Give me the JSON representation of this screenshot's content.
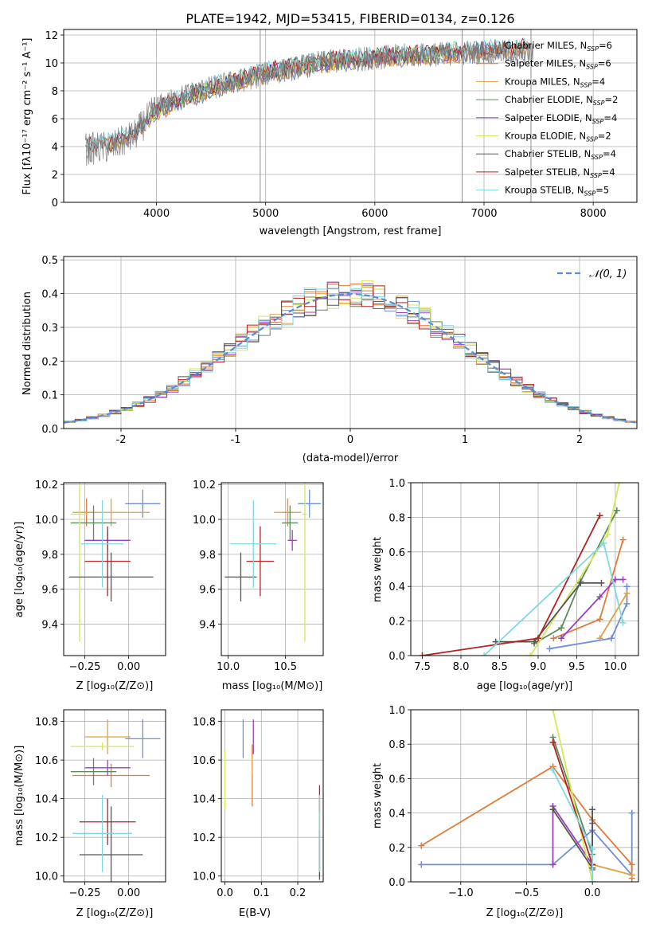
{
  "figure": {
    "title": "PLATE=1942, MJD=53415, FIBERID=0134, z=0.126",
    "series_names": [
      "Chabrier MILES, N_SSP=6",
      "Salpeter MILES, N_SSP=6",
      "Kroupa MILES, N_SSP=4",
      "Chabrier ELODIE, N_SSP=2",
      "Salpeter ELODIE, N_SSP=4",
      "Kroupa ELODIE, N_SSP=2",
      "Chabrier STELIB, N_SSP=4",
      "Salpeter STELIB, N_SSP=4",
      "Kroupa STELIB, N_SSP=5"
    ],
    "series_colors": [
      "#6f8fd8",
      "#e07b39",
      "#e0a040",
      "#5c8a5c",
      "#9b3fbf",
      "#d4e85a",
      "#555555",
      "#b22222",
      "#7fd8e0"
    ]
  },
  "chart_data": [
    {
      "id": "spectrum",
      "type": "line",
      "title": "PLATE=1942, MJD=53415, FIBERID=0134, z=0.126",
      "xlabel": "wavelength [Angstrom, rest frame]",
      "ylabel": "Flux [fλ10⁻¹⁷ erg cm⁻² s⁻¹ A⁻¹]",
      "xlim": [
        3150,
        8400
      ],
      "ylim": [
        0,
        12.4
      ],
      "xticks": [
        4000,
        5000,
        6000,
        7000,
        8000
      ],
      "yticks": [
        0,
        2,
        4,
        6,
        8,
        10,
        12
      ],
      "grid": true,
      "legend_position": "right",
      "legend": [
        {
          "label": "Chabrier MILES, N",
          "sub": "SSP",
          "val": "=6",
          "color": "#6f8fd8"
        },
        {
          "label": "Salpeter MILES, N",
          "sub": "SSP",
          "val": "=6",
          "color": "#e07b39"
        },
        {
          "label": "Kroupa MILES, N",
          "sub": "SSP",
          "val": "=4",
          "color": "#e0a040"
        },
        {
          "label": "Chabrier ELODIE, N",
          "sub": "SSP",
          "val": "=2",
          "color": "#5c8a5c"
        },
        {
          "label": "Salpeter ELODIE, N",
          "sub": "SSP",
          "val": "=4",
          "color": "#9b3fbf"
        },
        {
          "label": "Kroupa ELODIE, N",
          "sub": "SSP",
          "val": "=2",
          "color": "#d4e85a"
        },
        {
          "label": "Chabrier STELIB, N",
          "sub": "SSP",
          "val": "=4",
          "color": "#555555"
        },
        {
          "label": "Salpeter STELIB, N",
          "sub": "SSP",
          "val": "=4",
          "color": "#b22222"
        },
        {
          "label": "Kroupa STELIB, N",
          "sub": "SSP",
          "val": "=5",
          "color": "#7fd8e0"
        }
      ],
      "observed_continuum": {
        "x": [
          3350,
          3600,
          3800,
          4000,
          4300,
          4600,
          5000,
          5500,
          6000,
          6500,
          7000,
          7500
        ],
        "y": [
          3.8,
          4.0,
          4.8,
          6.8,
          7.8,
          8.4,
          9.2,
          10.0,
          10.4,
          10.6,
          10.8,
          10.7
        ]
      },
      "model_continuum": {
        "x": [
          3350,
          3600,
          3800,
          4000,
          4300,
          4600,
          5000,
          5500,
          6000,
          6500,
          7000,
          7400
        ],
        "y": [
          3.9,
          4.2,
          5.0,
          6.6,
          7.6,
          8.4,
          9.3,
          10.0,
          10.4,
          10.6,
          10.9,
          11.0
        ]
      },
      "model_ranges": [
        {
          "series": "Chabrier MILES",
          "xmin": 3540,
          "xmax": 7400
        },
        {
          "series": "Salpeter MILES",
          "xmin": 3540,
          "xmax": 7420
        },
        {
          "series": "Kroupa MILES",
          "xmin": 3540,
          "xmax": 7400
        },
        {
          "series": "Chabrier ELODIE",
          "xmin": 3900,
          "xmax": 6800
        },
        {
          "series": "Salpeter ELODIE",
          "xmin": 3900,
          "xmax": 6800
        },
        {
          "series": "Kroupa ELODIE",
          "xmin": 3900,
          "xmax": 6800
        },
        {
          "series": "Chabrier STELIB",
          "xmin": 3350,
          "xmax": 7400
        },
        {
          "series": "Salpeter STELIB",
          "xmin": 3350,
          "xmax": 7420
        },
        {
          "series": "Kroupa STELIB",
          "xmin": 3350,
          "xmax": 7400
        }
      ],
      "vertical_dips": [
        4950,
        6800,
        7430
      ]
    },
    {
      "id": "residuals",
      "type": "histogram",
      "xlabel": "(data-model)/error",
      "ylabel": "Normed distribution",
      "xlim": [
        -2.5,
        2.5
      ],
      "ylim": [
        0,
        0.51
      ],
      "xticks": [
        -2,
        -1,
        0,
        1,
        2
      ],
      "yticks": [
        0.0,
        0.1,
        0.2,
        0.3,
        0.4,
        0.5
      ],
      "grid": true,
      "legend_position": "top-right",
      "reference": {
        "label": "𝒩(0, 1)",
        "mean": 0,
        "sigma": 1,
        "color": "#5b8ad6"
      },
      "bin_width": 0.1
    },
    {
      "id": "age_vs_Z",
      "type": "errorbar",
      "xlabel": "Z [log₁₀(Z/Z⊙)]",
      "ylabel": "age  [log₁₀(age/yr)]",
      "xlim": [
        -0.37,
        0.21
      ],
      "ylim": [
        9.22,
        10.21
      ],
      "xticks": [
        -0.25,
        0.0
      ],
      "xticklabels": [
        "−0.25",
        "0.00"
      ],
      "yticks": [
        9.4,
        9.6,
        9.8,
        10.0,
        10.2
      ],
      "grid": true,
      "points": [
        {
          "series": 0,
          "x": 0.08,
          "y": 10.09,
          "xerr": 0.1,
          "yerr": 0.08
        },
        {
          "series": 1,
          "x": -0.24,
          "y": 10.04,
          "xerr": 0.05,
          "yerr": 0.08
        },
        {
          "series": 2,
          "x": -0.1,
          "y": 10.04,
          "xerr": 0.22,
          "yerr": 0.08
        },
        {
          "series": 3,
          "x": -0.2,
          "y": 9.98,
          "xerr": 0.13,
          "yerr": 0.1
        },
        {
          "series": 4,
          "x": -0.12,
          "y": 9.88,
          "xerr": 0.13,
          "yerr": 0.06
        },
        {
          "series": 5,
          "x": -0.28,
          "y": 10.03,
          "xerr": 0.05,
          "yerr": 0.73
        },
        {
          "series": 6,
          "x": -0.1,
          "y": 9.67,
          "xerr": 0.24,
          "yerr": 0.14
        },
        {
          "series": 7,
          "x": -0.12,
          "y": 9.76,
          "xerr": 0.13,
          "yerr": 0.2
        },
        {
          "series": 8,
          "x": -0.15,
          "y": 9.86,
          "xerr": 0.12,
          "yerr": 0.25
        }
      ]
    },
    {
      "id": "age_vs_mass",
      "type": "errorbar",
      "xlabel": "mass [log₁₀(M/M⊙)]",
      "ylabel": "",
      "xlim": [
        9.94,
        10.83
      ],
      "ylim": [
        9.22,
        10.21
      ],
      "xticks": [
        10.0,
        10.5
      ],
      "yticks": [
        9.4,
        9.6,
        9.8,
        10.0,
        10.2
      ],
      "grid": true,
      "points": [
        {
          "series": 0,
          "x": 10.71,
          "y": 10.09,
          "xerr": 0.1,
          "yerr": 0.08
        },
        {
          "series": 1,
          "x": 10.52,
          "y": 10.04,
          "xerr": 0.05,
          "yerr": 0.08
        },
        {
          "series": 2,
          "x": 10.52,
          "y": 10.04,
          "xerr": 0.12,
          "yerr": 0.08
        },
        {
          "series": 3,
          "x": 10.54,
          "y": 9.98,
          "xerr": 0.07,
          "yerr": 0.1
        },
        {
          "series": 4,
          "x": 10.56,
          "y": 9.88,
          "xerr": 0.04,
          "yerr": 0.06
        },
        {
          "series": 5,
          "x": 10.67,
          "y": 10.03,
          "xerr": 0.02,
          "yerr": 0.73
        },
        {
          "series": 6,
          "x": 10.11,
          "y": 9.67,
          "xerr": 0.14,
          "yerr": 0.14
        },
        {
          "series": 7,
          "x": 10.28,
          "y": 9.76,
          "xerr": 0.12,
          "yerr": 0.2
        },
        {
          "series": 8,
          "x": 10.22,
          "y": 9.86,
          "xerr": 0.2,
          "yerr": 0.25
        }
      ]
    },
    {
      "id": "mass_weight_vs_age",
      "type": "line",
      "xlabel": "age  [log₁₀(age/yr)]",
      "ylabel": "mass weight",
      "xlim": [
        7.35,
        10.3
      ],
      "ylim": [
        0,
        1.0
      ],
      "xticks": [
        7.5,
        8.0,
        8.5,
        9.0,
        9.5,
        10.0
      ],
      "yticks": [
        0.0,
        0.2,
        0.4,
        0.6,
        0.8,
        1.0
      ],
      "grid": true,
      "series": [
        {
          "series": 0,
          "x": [
            9.15,
            9.95,
            10.15,
            10.15
          ],
          "y": [
            0.04,
            0.1,
            0.3,
            0.4
          ]
        },
        {
          "series": 1,
          "x": [
            9.2,
            9.8,
            10.1
          ],
          "y": [
            0.1,
            0.21,
            0.67
          ]
        },
        {
          "series": 2,
          "x": [
            9.8,
            10.15
          ],
          "y": [
            0.1,
            0.36
          ]
        },
        {
          "series": 3,
          "x": [
            8.95,
            9.3,
            9.55,
            10.02
          ],
          "y": [
            0.07,
            0.16,
            0.43,
            0.84
          ]
        },
        {
          "series": 4,
          "x": [
            9.3,
            9.8,
            10.0,
            10.1
          ],
          "y": [
            0.1,
            0.34,
            0.44,
            0.44
          ]
        },
        {
          "series": 5,
          "x": [
            8.9,
            9.9,
            10.05
          ],
          "y": [
            0.0,
            0.7,
            1.0
          ]
        },
        {
          "series": 6,
          "x": [
            8.45,
            8.95,
            9.55,
            9.82
          ],
          "y": [
            0.08,
            0.08,
            0.42,
            0.42
          ]
        },
        {
          "series": 7,
          "x": [
            7.5,
            9.0,
            9.8
          ],
          "y": [
            0.0,
            0.1,
            0.81
          ]
        },
        {
          "series": 8,
          "x": [
            8.3,
            9.85,
            10.1
          ],
          "y": [
            0.0,
            0.65,
            0.19
          ]
        }
      ]
    },
    {
      "id": "mass_vs_Z",
      "type": "errorbar",
      "xlabel": "Z [log₁₀(Z/Z⊙)]",
      "ylabel": "mass [log₁₀(M/M⊙)]",
      "xlim": [
        -0.37,
        0.21
      ],
      "ylim": [
        9.97,
        10.86
      ],
      "xticks": [
        -0.25,
        0.0
      ],
      "xticklabels": [
        "−0.25",
        "0.00"
      ],
      "yticks": [
        10.0,
        10.2,
        10.4,
        10.6,
        10.8
      ],
      "grid": true,
      "points": [
        {
          "series": 0,
          "x": 0.08,
          "y": 10.71,
          "xerr": 0.1,
          "yerr": 0.1
        },
        {
          "series": 1,
          "x": -0.1,
          "y": 10.52,
          "xerr": 0.22,
          "yerr": 0.06
        },
        {
          "series": 2,
          "x": -0.12,
          "y": 10.72,
          "xerr": 0.13,
          "yerr": 0.09
        },
        {
          "series": 3,
          "x": -0.2,
          "y": 10.54,
          "xerr": 0.13,
          "yerr": 0.07
        },
        {
          "series": 4,
          "x": -0.12,
          "y": 10.56,
          "xerr": 0.13,
          "yerr": 0.04
        },
        {
          "series": 5,
          "x": -0.15,
          "y": 10.67,
          "xerr": 0.18,
          "yerr": 0.02
        },
        {
          "series": 6,
          "x": -0.1,
          "y": 10.11,
          "xerr": 0.18,
          "yerr": 0.25
        },
        {
          "series": 7,
          "x": -0.12,
          "y": 10.28,
          "xerr": 0.16,
          "yerr": 0.12
        },
        {
          "series": 8,
          "x": -0.15,
          "y": 10.22,
          "xerr": 0.17,
          "yerr": 0.2
        }
      ]
    },
    {
      "id": "mass_vs_EBV",
      "type": "errorbar",
      "xlabel": "E(B-V)",
      "ylabel": "",
      "xlim": [
        -0.01,
        0.27
      ],
      "ylim": [
        9.97,
        10.86
      ],
      "xticks": [
        0.0,
        0.1,
        0.2
      ],
      "yticks": [
        10.0,
        10.2,
        10.4,
        10.6,
        10.8
      ],
      "grid": true,
      "points": [
        {
          "series": 0,
          "x": 0.05,
          "y": 10.71,
          "xerr": 0.0,
          "yerr": 0.1
        },
        {
          "series": 1,
          "x": 0.075,
          "y": 10.52,
          "xerr": 0.0,
          "yerr": 0.16
        },
        {
          "series": 2,
          "x": 0.075,
          "y": 10.6,
          "xerr": 0.0,
          "yerr": 0.08
        },
        {
          "series": 3,
          "x": 0.26,
          "y": 10.2,
          "xerr": 0.0,
          "yerr": 0.2
        },
        {
          "series": 4,
          "x": 0.078,
          "y": 10.72,
          "xerr": 0.0,
          "yerr": 0.09
        },
        {
          "series": 5,
          "x": 0.0,
          "y": 10.5,
          "xerr": 0.0,
          "yerr": 0.15
        },
        {
          "series": 6,
          "x": 0.26,
          "y": 10.11,
          "xerr": 0.0,
          "yerr": 0.13
        },
        {
          "series": 7,
          "x": 0.26,
          "y": 10.4,
          "xerr": 0.0,
          "yerr": 0.07
        },
        {
          "series": 8,
          "x": 0.26,
          "y": 10.22,
          "xerr": 0.0,
          "yerr": 0.2
        }
      ]
    },
    {
      "id": "mass_weight_vs_Z",
      "type": "line",
      "xlabel": "Z [log₁₀(Z/Z⊙)]",
      "ylabel": "mass weight",
      "xlim": [
        -1.38,
        0.35
      ],
      "ylim": [
        0,
        1.0
      ],
      "xticks": [
        -1.0,
        -0.5,
        0.0
      ],
      "xticklabels": [
        "−1.0",
        "−0.5",
        "0.0"
      ],
      "yticks": [
        0.0,
        0.2,
        0.4,
        0.6,
        0.8,
        1.0
      ],
      "grid": true,
      "series": [
        {
          "series": 0,
          "x": [
            -1.3,
            -0.3,
            0.0,
            0.3,
            0.3
          ],
          "y": [
            0.1,
            0.1,
            0.3,
            0.04,
            0.4
          ]
        },
        {
          "series": 1,
          "x": [
            -1.3,
            -0.3,
            0.0,
            0.3,
            0.3
          ],
          "y": [
            0.21,
            0.67,
            0.36,
            0.1,
            0.02
          ]
        },
        {
          "series": 2,
          "x": [
            0.0,
            0.3
          ],
          "y": [
            0.1,
            0.04
          ]
        },
        {
          "series": 3,
          "x": [
            -0.3,
            0.0,
            0.0
          ],
          "y": [
            0.84,
            0.16,
            0.07
          ]
        },
        {
          "series": 4,
          "x": [
            -0.3,
            -0.3,
            0.0,
            0.0
          ],
          "y": [
            0.1,
            0.44,
            0.1,
            0.34
          ]
        },
        {
          "series": 5,
          "x": [
            -0.3,
            0.0
          ],
          "y": [
            1.0,
            0.0
          ]
        },
        {
          "series": 6,
          "x": [
            -0.3,
            0.0,
            0.0
          ],
          "y": [
            0.42,
            0.08,
            0.42
          ]
        },
        {
          "series": 7,
          "x": [
            -0.3,
            0.0
          ],
          "y": [
            0.81,
            0.1
          ]
        },
        {
          "series": 8,
          "x": [
            -0.3,
            0.0,
            0.0
          ],
          "y": [
            0.65,
            0.19,
            0.0
          ]
        }
      ]
    }
  ]
}
